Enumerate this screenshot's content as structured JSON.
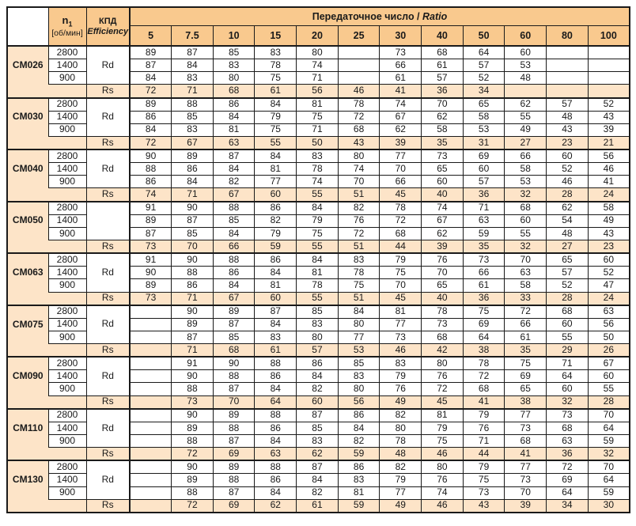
{
  "header": {
    "speed": {
      "base": "n",
      "sub": "1",
      "unit": "[об/мин]"
    },
    "efficiency": {
      "ru": "КПД",
      "en": "Efficiency"
    },
    "ratio_title": {
      "ru": "Передаточное число /",
      "en": "Ratio"
    },
    "columns": [
      "5",
      "7.5",
      "10",
      "15",
      "20",
      "25",
      "30",
      "40",
      "50",
      "60",
      "80",
      "100"
    ]
  },
  "labels": {
    "rs": "Rs"
  },
  "colors": {
    "header_bg": "#F9C98E",
    "band_bg": "#FDE4C8",
    "border": "#1A1A1A"
  },
  "blocks": [
    {
      "model": "CM026",
      "kpd": "Rd",
      "rows": [
        {
          "speed": "2800",
          "values": [
            "89",
            "87",
            "85",
            "83",
            "80",
            "",
            "73",
            "68",
            "64",
            "60",
            "",
            ""
          ]
        },
        {
          "speed": "1400",
          "values": [
            "87",
            "84",
            "83",
            "78",
            "74",
            "",
            "66",
            "61",
            "57",
            "53",
            "",
            ""
          ]
        },
        {
          "speed": "900",
          "values": [
            "84",
            "83",
            "80",
            "75",
            "71",
            "",
            "61",
            "57",
            "52",
            "48",
            "",
            ""
          ]
        }
      ],
      "rs": [
        "72",
        "71",
        "68",
        "61",
        "56",
        "46",
        "41",
        "36",
        "34",
        "",
        "",
        ""
      ]
    },
    {
      "model": "CM030",
      "kpd": "Rd",
      "rows": [
        {
          "speed": "2800",
          "values": [
            "89",
            "88",
            "86",
            "84",
            "81",
            "78",
            "74",
            "70",
            "65",
            "62",
            "57",
            "52"
          ]
        },
        {
          "speed": "1400",
          "values": [
            "86",
            "85",
            "84",
            "79",
            "75",
            "72",
            "67",
            "62",
            "58",
            "55",
            "48",
            "43"
          ]
        },
        {
          "speed": "900",
          "values": [
            "84",
            "83",
            "81",
            "75",
            "71",
            "68",
            "62",
            "58",
            "53",
            "49",
            "43",
            "39"
          ]
        }
      ],
      "rs": [
        "72",
        "67",
        "63",
        "55",
        "50",
        "43",
        "39",
        "35",
        "31",
        "27",
        "23",
        "21"
      ]
    },
    {
      "model": "CM040",
      "kpd": "Rd",
      "rows": [
        {
          "speed": "2800",
          "values": [
            "90",
            "89",
            "87",
            "84",
            "83",
            "80",
            "77",
            "73",
            "69",
            "66",
            "60",
            "56"
          ]
        },
        {
          "speed": "1400",
          "values": [
            "88",
            "86",
            "84",
            "81",
            "78",
            "74",
            "70",
            "65",
            "60",
            "58",
            "52",
            "46"
          ]
        },
        {
          "speed": "900",
          "values": [
            "86",
            "84",
            "82",
            "77",
            "74",
            "70",
            "66",
            "60",
            "57",
            "53",
            "46",
            "41"
          ]
        }
      ],
      "rs": [
        "74",
        "71",
        "67",
        "60",
        "55",
        "51",
        "45",
        "40",
        "36",
        "32",
        "28",
        "24"
      ]
    },
    {
      "model": "CM050",
      "kpd": "",
      "rows": [
        {
          "speed": "2800",
          "values": [
            "91",
            "90",
            "88",
            "86",
            "84",
            "82",
            "78",
            "74",
            "71",
            "68",
            "62",
            "58"
          ]
        },
        {
          "speed": "1400",
          "values": [
            "89",
            "87",
            "85",
            "82",
            "79",
            "76",
            "72",
            "67",
            "63",
            "60",
            "54",
            "49"
          ]
        },
        {
          "speed": "900",
          "values": [
            "87",
            "85",
            "84",
            "79",
            "75",
            "72",
            "68",
            "62",
            "59",
            "55",
            "48",
            "43"
          ]
        }
      ],
      "rs": [
        "73",
        "70",
        "66",
        "59",
        "55",
        "51",
        "44",
        "39",
        "35",
        "32",
        "27",
        "23"
      ]
    },
    {
      "model": "CM063",
      "kpd": "Rd",
      "rows": [
        {
          "speed": "2800",
          "values": [
            "91",
            "90",
            "88",
            "86",
            "84",
            "83",
            "79",
            "76",
            "73",
            "70",
            "65",
            "60"
          ]
        },
        {
          "speed": "1400",
          "values": [
            "90",
            "88",
            "86",
            "84",
            "81",
            "78",
            "75",
            "70",
            "66",
            "63",
            "57",
            "52"
          ]
        },
        {
          "speed": "900",
          "values": [
            "89",
            "86",
            "84",
            "81",
            "78",
            "75",
            "70",
            "65",
            "61",
            "58",
            "52",
            "47"
          ]
        }
      ],
      "rs": [
        "73",
        "71",
        "67",
        "60",
        "55",
        "51",
        "45",
        "40",
        "36",
        "33",
        "28",
        "24"
      ]
    },
    {
      "model": "CM075",
      "kpd": "Rd",
      "rows": [
        {
          "speed": "2800",
          "values": [
            "",
            "90",
            "89",
            "87",
            "85",
            "84",
            "81",
            "78",
            "75",
            "72",
            "68",
            "63"
          ]
        },
        {
          "speed": "1400",
          "values": [
            "",
            "89",
            "87",
            "84",
            "83",
            "80",
            "77",
            "73",
            "69",
            "66",
            "60",
            "56"
          ]
        },
        {
          "speed": "900",
          "values": [
            "",
            "87",
            "85",
            "83",
            "80",
            "77",
            "73",
            "68",
            "64",
            "61",
            "55",
            "50"
          ]
        }
      ],
      "rs": [
        "",
        "71",
        "68",
        "61",
        "57",
        "53",
        "46",
        "42",
        "38",
        "35",
        "29",
        "26"
      ]
    },
    {
      "model": "CM090",
      "kpd": "Rd",
      "rows": [
        {
          "speed": "2800",
          "values": [
            "",
            "91",
            "90",
            "88",
            "86",
            "85",
            "83",
            "80",
            "78",
            "75",
            "71",
            "67"
          ]
        },
        {
          "speed": "1400",
          "values": [
            "",
            "90",
            "88",
            "86",
            "84",
            "83",
            "79",
            "76",
            "72",
            "69",
            "64",
            "60"
          ]
        },
        {
          "speed": "900",
          "values": [
            "",
            "88",
            "87",
            "84",
            "82",
            "80",
            "76",
            "72",
            "68",
            "65",
            "60",
            "55"
          ]
        }
      ],
      "rs": [
        "",
        "73",
        "70",
        "64",
        "60",
        "56",
        "49",
        "45",
        "41",
        "38",
        "32",
        "28"
      ]
    },
    {
      "model": "CM110",
      "kpd": "Rd",
      "rows": [
        {
          "speed": "2800",
          "values": [
            "",
            "90",
            "89",
            "88",
            "87",
            "86",
            "82",
            "81",
            "79",
            "77",
            "73",
            "70"
          ]
        },
        {
          "speed": "1400",
          "values": [
            "",
            "89",
            "88",
            "86",
            "85",
            "84",
            "80",
            "79",
            "76",
            "73",
            "68",
            "64"
          ]
        },
        {
          "speed": "900",
          "values": [
            "",
            "88",
            "87",
            "84",
            "83",
            "82",
            "78",
            "75",
            "71",
            "68",
            "63",
            "59"
          ]
        }
      ],
      "rs": [
        "",
        "72",
        "69",
        "63",
        "62",
        "59",
        "48",
        "46",
        "44",
        "41",
        "36",
        "32"
      ]
    },
    {
      "model": "CM130",
      "kpd": "Rd",
      "rows": [
        {
          "speed": "2800",
          "values": [
            "",
            "90",
            "89",
            "88",
            "87",
            "86",
            "82",
            "80",
            "79",
            "77",
            "72",
            "70"
          ]
        },
        {
          "speed": "1400",
          "values": [
            "",
            "89",
            "88",
            "86",
            "84",
            "83",
            "79",
            "76",
            "75",
            "73",
            "69",
            "64"
          ]
        },
        {
          "speed": "900",
          "values": [
            "",
            "88",
            "87",
            "84",
            "82",
            "81",
            "77",
            "74",
            "73",
            "70",
            "64",
            "59"
          ]
        }
      ],
      "rs": [
        "",
        "72",
        "69",
        "62",
        "61",
        "59",
        "49",
        "46",
        "43",
        "39",
        "34",
        "30"
      ]
    }
  ]
}
